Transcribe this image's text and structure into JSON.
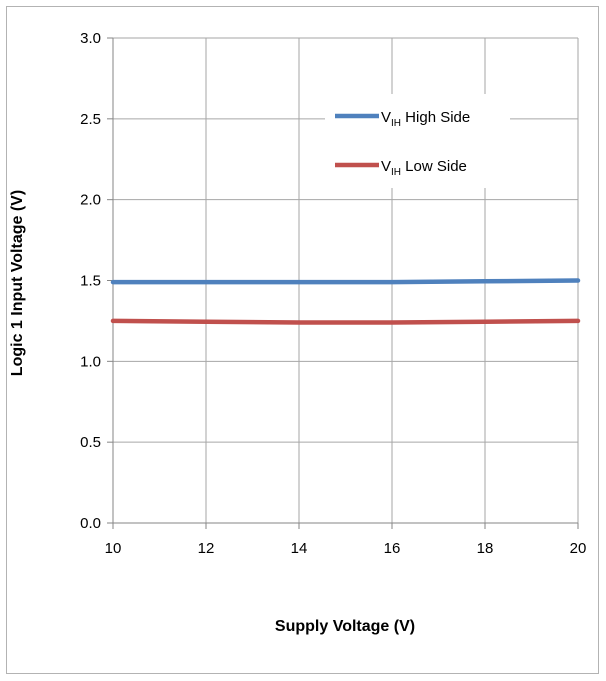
{
  "chart_data": {
    "type": "line",
    "xlabel": "Supply Voltage (V)",
    "ylabel": "Logic 1 Input Voltage (V)",
    "xlim": [
      10,
      20
    ],
    "ylim": [
      0,
      3.0
    ],
    "xticks": [
      10,
      12,
      14,
      16,
      18,
      20
    ],
    "yticks": [
      "0.0",
      "0.5",
      "1.0",
      "1.5",
      "2.0",
      "2.5",
      "3.0"
    ],
    "grid": true,
    "legend_position": "top-right",
    "series": [
      {
        "name_main": "V",
        "name_sub": "IH",
        "name_rest": " High Side",
        "color": "#4f81bd",
        "x": [
          10,
          12,
          14,
          16,
          18,
          20
        ],
        "y": [
          1.49,
          1.49,
          1.49,
          1.49,
          1.495,
          1.5
        ]
      },
      {
        "name_main": "V",
        "name_sub": "IH",
        "name_rest": " Low Side",
        "color": "#c0504d",
        "x": [
          10,
          12,
          14,
          15,
          16,
          18,
          20
        ],
        "y": [
          1.25,
          1.245,
          1.24,
          1.24,
          1.24,
          1.245,
          1.25
        ]
      }
    ]
  }
}
